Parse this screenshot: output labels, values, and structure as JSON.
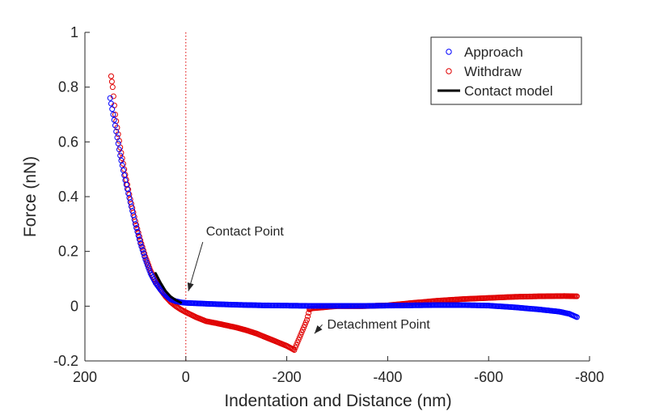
{
  "chart_data": {
    "type": "scatter",
    "xlabel": "Indentation and Distance  (nm)",
    "ylabel": "Force (nN)",
    "xlim": [
      200,
      -800
    ],
    "ylim": [
      -0.2,
      1
    ],
    "x_ticks": [
      200,
      0,
      -200,
      -400,
      -600,
      -800
    ],
    "x_tick_labels": [
      "200",
      "0",
      "-200",
      "-400",
      "-600",
      "-800"
    ],
    "y_ticks": [
      -0.2,
      0,
      0.2,
      0.4,
      0.6,
      0.8,
      1
    ],
    "y_tick_labels": [
      "-0.2",
      "0",
      "0.2",
      "0.4",
      "0.6",
      "0.8",
      "1"
    ],
    "grid": false,
    "legend_position": "top-right",
    "legend": [
      "Approach",
      "Withdraw",
      "Contact model"
    ],
    "reference_line_x": 0,
    "colors": {
      "approach": "#0000ff",
      "withdraw": "#e00000",
      "contact_model": "#000000",
      "reference_line": "#e00000",
      "axes": "#262626"
    },
    "series": [
      {
        "name": "Approach",
        "style": "markers",
        "x": [
          150,
          140,
          130,
          120,
          110,
          100,
          90,
          80,
          70,
          60,
          50,
          40,
          30,
          20,
          10,
          0,
          -50,
          -100,
          -150,
          -200,
          -250,
          -300,
          -350,
          -400,
          -450,
          -500,
          -550,
          -600,
          -650,
          -700,
          -740,
          -760,
          -775
        ],
        "y": [
          0.76,
          0.66,
          0.55,
          0.46,
          0.38,
          0.3,
          0.23,
          0.17,
          0.12,
          0.085,
          0.06,
          0.04,
          0.025,
          0.018,
          0.014,
          0.012,
          0.008,
          0.005,
          0.003,
          0.002,
          0.001,
          0.001,
          0.001,
          0.002,
          0.003,
          0.004,
          0.004,
          0.002,
          -0.004,
          -0.012,
          -0.02,
          -0.028,
          -0.04
        ]
      },
      {
        "name": "Withdraw",
        "style": "markers",
        "x": [
          148,
          145,
          140,
          130,
          120,
          110,
          100,
          90,
          80,
          70,
          60,
          50,
          40,
          30,
          20,
          10,
          0,
          -20,
          -40,
          -60,
          -80,
          -100,
          -120,
          -140,
          -160,
          -180,
          -200,
          -215,
          -240,
          -245,
          -250,
          -300,
          -350,
          -400,
          -450,
          -500,
          -550,
          -600,
          -650,
          -700,
          -750,
          -775
        ],
        "y": [
          0.84,
          0.8,
          0.7,
          0.58,
          0.48,
          0.39,
          0.31,
          0.24,
          0.18,
          0.13,
          0.09,
          0.06,
          0.035,
          0.015,
          0.0,
          -0.012,
          -0.022,
          -0.04,
          -0.055,
          -0.062,
          -0.07,
          -0.078,
          -0.088,
          -0.1,
          -0.115,
          -0.13,
          -0.145,
          -0.16,
          -0.05,
          -0.012,
          -0.008,
          0.0,
          0.0,
          0.003,
          0.012,
          0.02,
          0.026,
          0.03,
          0.034,
          0.036,
          0.037,
          0.036
        ]
      },
      {
        "name": "Contact model",
        "style": "line",
        "x": [
          60,
          50,
          40,
          30,
          20,
          10
        ],
        "y": [
          0.12,
          0.085,
          0.055,
          0.035,
          0.022,
          0.013
        ]
      }
    ],
    "annotations": [
      {
        "text": "Contact Point",
        "x": -40,
        "y": 0.24,
        "target_x": -5,
        "target_y": 0.055
      },
      {
        "text": "Detachment Point",
        "x": -280,
        "y": -0.1,
        "target_x": -255,
        "target_y": -0.1
      }
    ]
  }
}
